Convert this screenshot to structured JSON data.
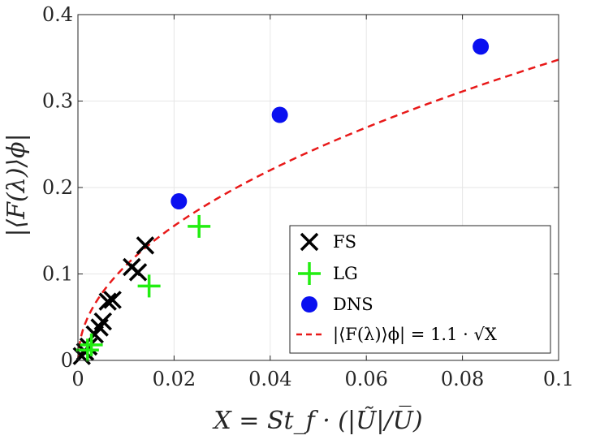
{
  "chart_data": {
    "type": "scatter",
    "xlabel": "X = St_f · (|Ũ|/U̅)",
    "ylabel": "|⟨F(λ)⟩ϕ|",
    "xlim": [
      0,
      0.1
    ],
    "ylim": [
      0,
      0.4
    ],
    "xticks": [
      0,
      0.02,
      0.04,
      0.06,
      0.08,
      0.1
    ],
    "xtick_labels": [
      "0",
      "0.02",
      "0.04",
      "0.06",
      "0.08",
      "0.1"
    ],
    "yticks": [
      0,
      0.1,
      0.2,
      0.3,
      0.4
    ],
    "ytick_labels": [
      "0",
      "0.1",
      "0.2",
      "0.3",
      "0.4"
    ],
    "grid": true,
    "legend_position": "bottom-right",
    "series": [
      {
        "name": "FS",
        "marker": "x",
        "color": "#000000",
        "x": [
          0.0008,
          0.0015,
          0.0022,
          0.0035,
          0.0045,
          0.0052,
          0.0062,
          0.0072,
          0.0112,
          0.0125,
          0.014
        ],
        "y": [
          0.005,
          0.01,
          0.016,
          0.03,
          0.038,
          0.045,
          0.068,
          0.07,
          0.108,
          0.102,
          0.133
        ]
      },
      {
        "name": "LG",
        "marker": "+",
        "color": "#22ee11",
        "x": [
          0.002,
          0.0028,
          0.0148,
          0.0252
        ],
        "y": [
          0.012,
          0.018,
          0.086,
          0.155
        ]
      },
      {
        "name": "DNS",
        "marker": "o",
        "color": "#0a10f0",
        "x": [
          0.021,
          0.042,
          0.0838
        ],
        "y": [
          0.184,
          0.284,
          0.363
        ]
      },
      {
        "name": "|⟨F(λ)⟩ϕ| = 1.1 · √X",
        "marker": "dashed-line",
        "color": "#e81919",
        "function": "1.1*sqrt(x)",
        "coefficient": 1.1,
        "x_range": [
          0,
          0.1
        ]
      }
    ]
  }
}
